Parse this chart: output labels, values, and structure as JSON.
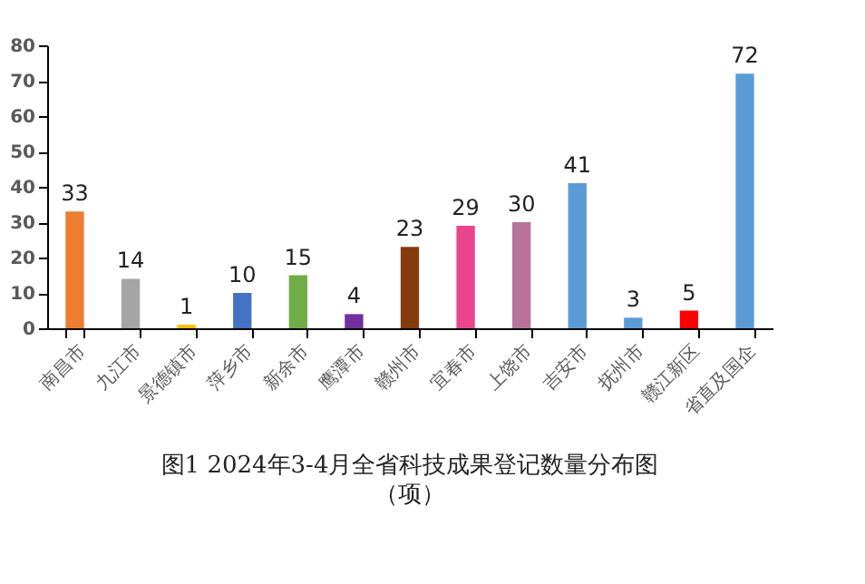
{
  "chart_data": {
    "type": "bar",
    "title": "图1    2024年3-4月全省科技成果登记数量分布图",
    "subtitle": "（项）",
    "categories": [
      "南昌市",
      "九江市",
      "景德镇市",
      "萍乡市",
      "新余市",
      "鹰潭市",
      "赣州市",
      "宜春市",
      "上饶市",
      "吉安市",
      "抚州市",
      "赣江新区",
      "省直及国企"
    ],
    "values": [
      33,
      14,
      1,
      10,
      15,
      4,
      23,
      29,
      30,
      41,
      3,
      5,
      72
    ],
    "colors": [
      "#ed7d31",
      "#a5a5a5",
      "#ffc000",
      "#4472c4",
      "#70ad47",
      "#7030a0",
      "#843c0c",
      "#ea4690",
      "#b8739a",
      "#5b9bd5",
      "#5b9bd5",
      "#ff0000",
      "#5b9bd5"
    ],
    "ylim": [
      0,
      80
    ],
    "yticks": [
      0,
      10,
      20,
      30,
      40,
      50,
      60,
      70,
      80
    ],
    "grid": false,
    "data_labels": true
  }
}
